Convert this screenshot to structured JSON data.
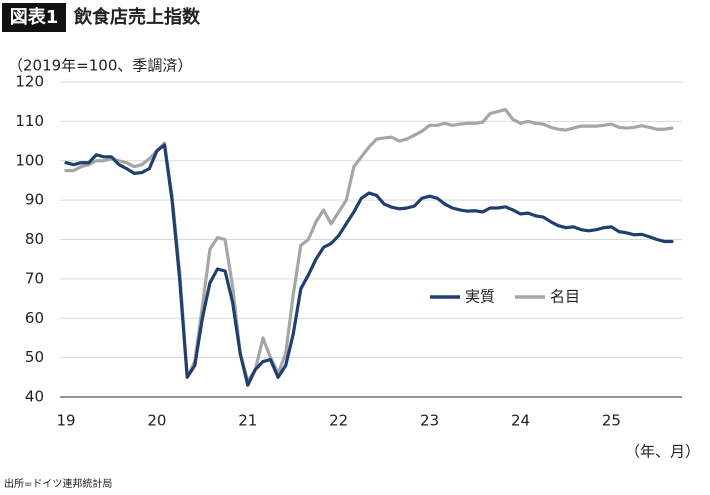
{
  "chart_data": {
    "type": "line",
    "title_label": "図表1",
    "title": "飲食店売上指数",
    "y_label": "（2019年=100、季調済）",
    "x_label": "（年、月）",
    "source": "出所=ドイツ連邦統計局",
    "categories": [
      "19",
      null,
      null,
      null,
      null,
      null,
      null,
      null,
      null,
      null,
      null,
      null,
      "20",
      null,
      null,
      null,
      null,
      null,
      null,
      null,
      null,
      null,
      null,
      null,
      "21",
      null,
      null,
      null,
      null,
      null,
      null,
      null,
      null,
      null,
      null,
      null,
      "22",
      null,
      null,
      null,
      null,
      null,
      null,
      null,
      null,
      null,
      null,
      null,
      "23",
      null,
      null,
      null,
      null,
      null,
      null,
      null,
      null,
      null,
      null,
      null,
      "24",
      null,
      null,
      null,
      null,
      null,
      null,
      null,
      null,
      null,
      null,
      null,
      "25",
      null,
      null,
      null,
      null,
      null,
      null,
      null,
      null
    ],
    "series": [
      {
        "name": "実質",
        "color": "#1f3f6e",
        "values": [
          99.5,
          99,
          99.5,
          99.5,
          101.5,
          101,
          101,
          99,
          98,
          96.8,
          97,
          98,
          102.5,
          104,
          90,
          70,
          45,
          48,
          60,
          69,
          72.5,
          72,
          64,
          51,
          43,
          47,
          49,
          49.5,
          45,
          48,
          56,
          67.5,
          71,
          75,
          78,
          79,
          81,
          84,
          87,
          90.5,
          91.8,
          91.2,
          89,
          88.2,
          87.8,
          88,
          88.5,
          90.5,
          91,
          90.5,
          89,
          88,
          87.5,
          87.2,
          87.3,
          87,
          88,
          88,
          88.3,
          87.5,
          86.5,
          86.7,
          86,
          85.7,
          84.5,
          83.5,
          83,
          83.2,
          82.5,
          82.2,
          82.5,
          83,
          83.2,
          82,
          81.7,
          81.2,
          81.3,
          80.7,
          80,
          79.5,
          79.5
        ]
      },
      {
        "name": "名目",
        "color": "#a6a6a6",
        "values": [
          97.5,
          97.5,
          98.5,
          99,
          100,
          100,
          100.5,
          100,
          99.5,
          98.5,
          99,
          100.5,
          102.5,
          104.5,
          91,
          72,
          45,
          49,
          63,
          77.5,
          80.5,
          80,
          68,
          51,
          44,
          47,
          55,
          50,
          46,
          51,
          66,
          78.5,
          80,
          84.5,
          87.5,
          84,
          87,
          90,
          98.5,
          101,
          103.5,
          105.5,
          105.8,
          106,
          105,
          105.5,
          106.5,
          107.5,
          109,
          109,
          109.5,
          109,
          109.3,
          109.5,
          109.5,
          109.8,
          112,
          112.5,
          113,
          110.5,
          109.5,
          110,
          109.5,
          109.3,
          108.5,
          108,
          107.8,
          108.3,
          108.8,
          108.8,
          108.8,
          109,
          109.3,
          108.5,
          108.3,
          108.5,
          108.9,
          108.5,
          108,
          108,
          108.3
        ]
      }
    ],
    "ylim": [
      40,
      120
    ],
    "yticks": [
      40,
      50,
      60,
      70,
      80,
      90,
      100,
      110,
      120
    ],
    "grid": true
  }
}
